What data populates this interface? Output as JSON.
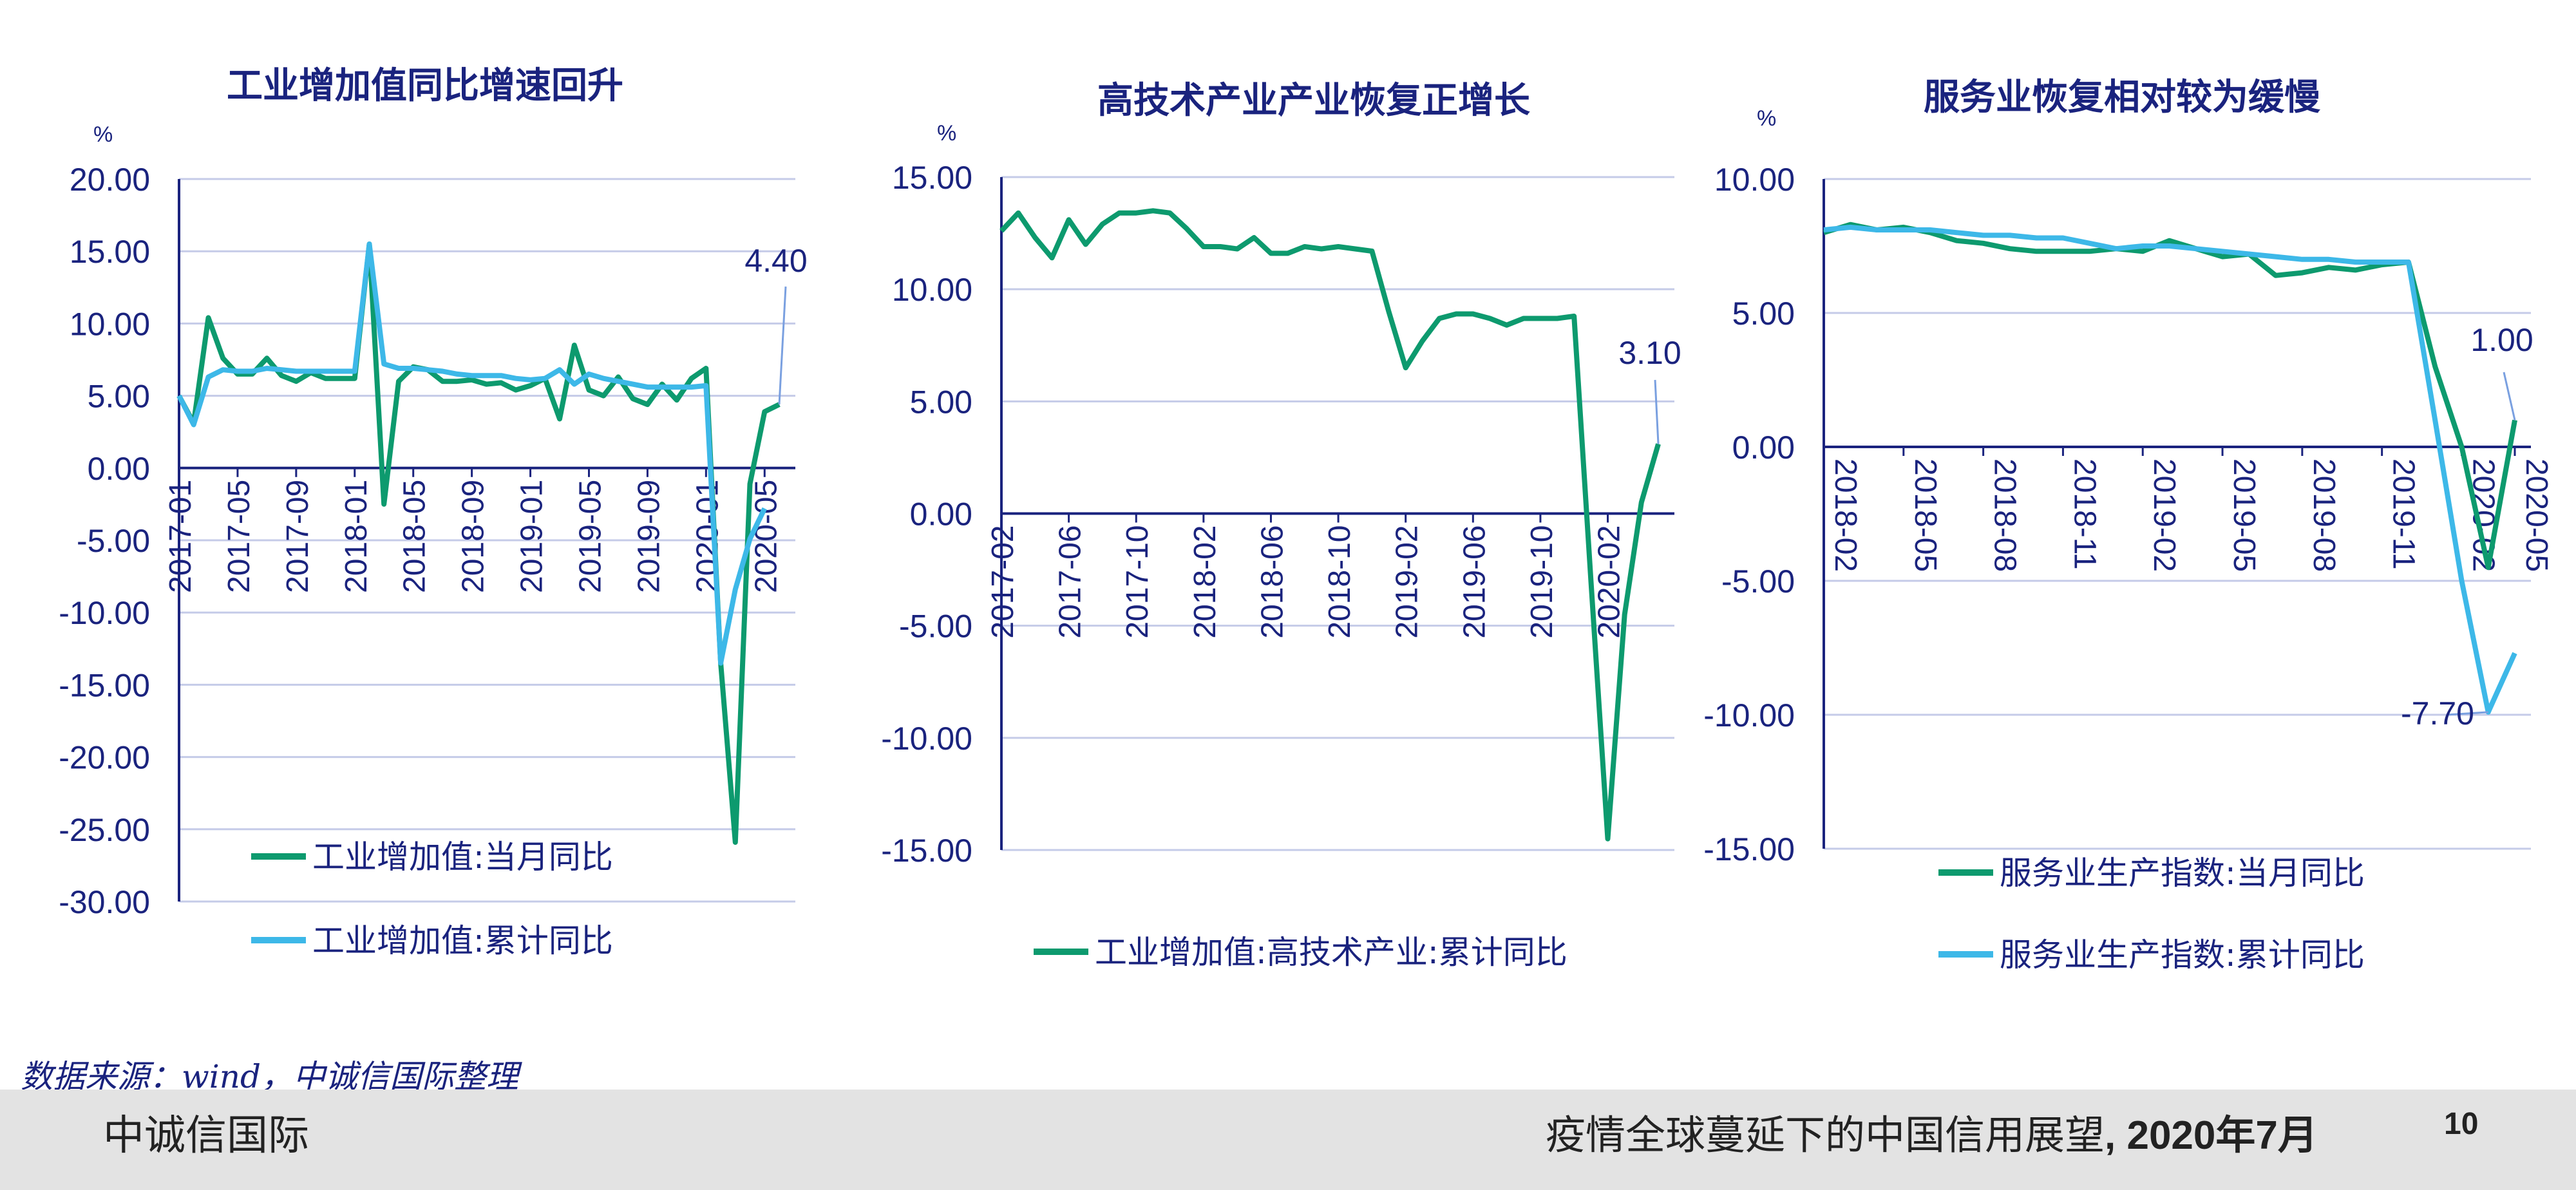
{
  "source_note": "数据来源：wind，中诚信国际整理",
  "footer": {
    "org": "中诚信国际",
    "report_title": "疫情全球蔓延下的中国信用展望",
    "report_date": ", 2020年7月",
    "page": "10"
  },
  "colors": {
    "monthly": "#0d9a6e",
    "cumulative": "#3db8e8",
    "axis": "#1a237e",
    "grid": "#c5cbe8",
    "text": "#1a237e"
  },
  "chart_data": [
    {
      "type": "line",
      "title": "工业增加值同比增速回升",
      "unit_label": "%",
      "ylim": [
        -30,
        20
      ],
      "y_ticks": [
        "20.00",
        "15.00",
        "10.00",
        "5.00",
        "0.00",
        "-5.00",
        "-10.00",
        "-15.00",
        "-20.00",
        "-25.00",
        "-30.00"
      ],
      "x_ticks": [
        "2017-01",
        "2017-05",
        "2017-09",
        "2018-01",
        "2018-05",
        "2018-09",
        "2019-01",
        "2019-05",
        "2019-09",
        "2020-01",
        "2020-05"
      ],
      "annotations": [
        {
          "text": "4.40"
        }
      ],
      "series": [
        {
          "name": "工业增加值:当月同比",
          "values": [
            5.0,
            3.1,
            10.4,
            7.6,
            6.5,
            6.5,
            7.6,
            6.4,
            6.0,
            6.6,
            6.2,
            6.2,
            6.2,
            15.5,
            -2.5,
            6.0,
            7.0,
            6.8,
            6.0,
            6.0,
            6.1,
            5.8,
            5.9,
            5.4,
            5.7,
            6.2,
            3.4,
            8.5,
            5.4,
            5.0,
            6.3,
            4.8,
            4.4,
            5.8,
            4.7,
            6.2,
            6.9,
            -13.5,
            -25.9,
            -1.1,
            3.9,
            4.4
          ]
        },
        {
          "name": "工业增加值:累计同比",
          "values": [
            5.0,
            3.0,
            6.3,
            6.8,
            6.7,
            6.7,
            6.9,
            6.8,
            6.7,
            6.7,
            6.7,
            6.7,
            6.7,
            15.5,
            7.2,
            6.9,
            6.9,
            6.8,
            6.7,
            6.5,
            6.4,
            6.4,
            6.4,
            6.2,
            6.1,
            6.2,
            6.8,
            5.8,
            6.5,
            6.2,
            6.0,
            5.8,
            5.6,
            5.6,
            5.6,
            5.6,
            5.7,
            -13.5,
            -8.4,
            -4.9,
            -2.8
          ]
        }
      ],
      "legend": [
        "工业增加值:当月同比",
        "工业增加值:累计同比"
      ]
    },
    {
      "type": "line",
      "title": "高技术产业产业恢复正增长",
      "unit_label": "%",
      "ylim": [
        -15,
        15
      ],
      "y_ticks": [
        "15.00",
        "10.00",
        "5.00",
        "0.00",
        "-5.00",
        "-10.00",
        "-15.00"
      ],
      "x_ticks": [
        "2017-02",
        "2017-06",
        "2017-10",
        "2018-02",
        "2018-06",
        "2018-10",
        "2019-02",
        "2019-06",
        "2019-10",
        "2020-02"
      ],
      "annotations": [
        {
          "text": "3.10"
        }
      ],
      "series": [
        {
          "name": "工业增加值:高技术产业:累计同比",
          "values": [
            12.6,
            13.4,
            12.3,
            11.4,
            13.1,
            12.0,
            12.9,
            13.4,
            13.4,
            13.5,
            13.4,
            12.7,
            11.9,
            11.9,
            11.8,
            12.3,
            11.6,
            11.6,
            11.9,
            11.8,
            11.9,
            11.8,
            11.7,
            9.0,
            6.5,
            7.7,
            8.7,
            8.9,
            8.9,
            8.7,
            8.4,
            8.7,
            8.7,
            8.7,
            8.8,
            -3.0,
            -14.5,
            -4.5,
            0.5,
            3.1
          ]
        }
      ],
      "legend": [
        "工业增加值:高技术产业:累计同比"
      ]
    },
    {
      "type": "line",
      "title": "服务业恢复相对较为缓慢",
      "unit_label": "%",
      "ylim": [
        -15,
        10
      ],
      "y_ticks": [
        "10.00",
        "5.00",
        "0.00",
        "-5.00",
        "-10.00",
        "-15.00"
      ],
      "x_ticks": [
        "2018-02",
        "2018-05",
        "2018-08",
        "2018-11",
        "2019-02",
        "2019-05",
        "2019-08",
        "2019-11",
        "2020-02",
        "2020-05"
      ],
      "annotations": [
        {
          "text": "1.00"
        },
        {
          "text": "-7.70"
        }
      ],
      "series": [
        {
          "name": "服务业生产指数:当月同比",
          "values": [
            8.0,
            8.3,
            8.1,
            8.2,
            8.0,
            7.7,
            7.6,
            7.4,
            7.3,
            7.3,
            7.3,
            7.4,
            7.3,
            7.7,
            7.4,
            7.1,
            7.2,
            6.4,
            6.5,
            6.7,
            6.6,
            6.8,
            6.9,
            3.0,
            0.0,
            -4.5,
            1.0
          ]
        },
        {
          "name": "服务业生产指数:累计同比",
          "values": [
            8.1,
            8.2,
            8.1,
            8.1,
            8.1,
            8.0,
            7.9,
            7.9,
            7.8,
            7.8,
            7.6,
            7.4,
            7.5,
            7.5,
            7.4,
            7.3,
            7.2,
            7.1,
            7.0,
            7.0,
            6.9,
            6.9,
            6.9,
            1.0,
            -5.0,
            -9.9,
            -7.7
          ]
        }
      ],
      "legend": [
        "服务业生产指数:当月同比",
        "服务业生产指数:累计同比"
      ]
    }
  ]
}
